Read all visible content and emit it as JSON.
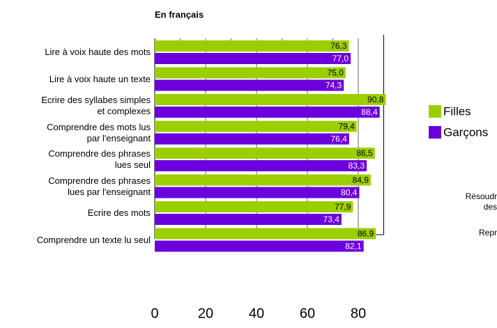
{
  "chart_data": {
    "type": "barh",
    "title": "En français",
    "categories": [
      "Lire à voix haute des mots",
      "Lire à voix haute un texte",
      "Ecrire des syllabes simples\net complexes",
      "Comprendre des mots lus\npar l'enseignant",
      "Comprendre des phrases\nlues seul",
      "Comprendre des phrases\nlues par l'enseignant",
      "Ecrire des mots",
      "Comprendre un texte lu seul"
    ],
    "series": [
      {
        "name": "Filles",
        "color": "#9ccf00",
        "values": [
          76.3,
          75.0,
          90.8,
          79.4,
          86.5,
          84.9,
          77.9,
          86.9
        ],
        "value_labels": [
          "76,3",
          "75,0",
          "90,8",
          "79,4",
          "86,5",
          "84,9",
          "77,9",
          "86,9"
        ]
      },
      {
        "name": "Garçons",
        "color": "#6c00dc",
        "values": [
          77.0,
          74.3,
          88.4,
          76.4,
          83.3,
          80.4,
          73.4,
          82.1
        ],
        "value_labels": [
          "77,0",
          "74,3",
          "88,4",
          "76,4",
          "83,3",
          "80,4",
          "73,4",
          "82,1"
        ]
      }
    ],
    "xlim": [
      0,
      90
    ],
    "xticks": [
      0,
      20,
      40,
      60,
      80
    ],
    "xminorticks": [
      10,
      30,
      50,
      70,
      90
    ],
    "legend": "right",
    "annotations": [
      "Résoudr",
      "des",
      "Repr"
    ]
  }
}
